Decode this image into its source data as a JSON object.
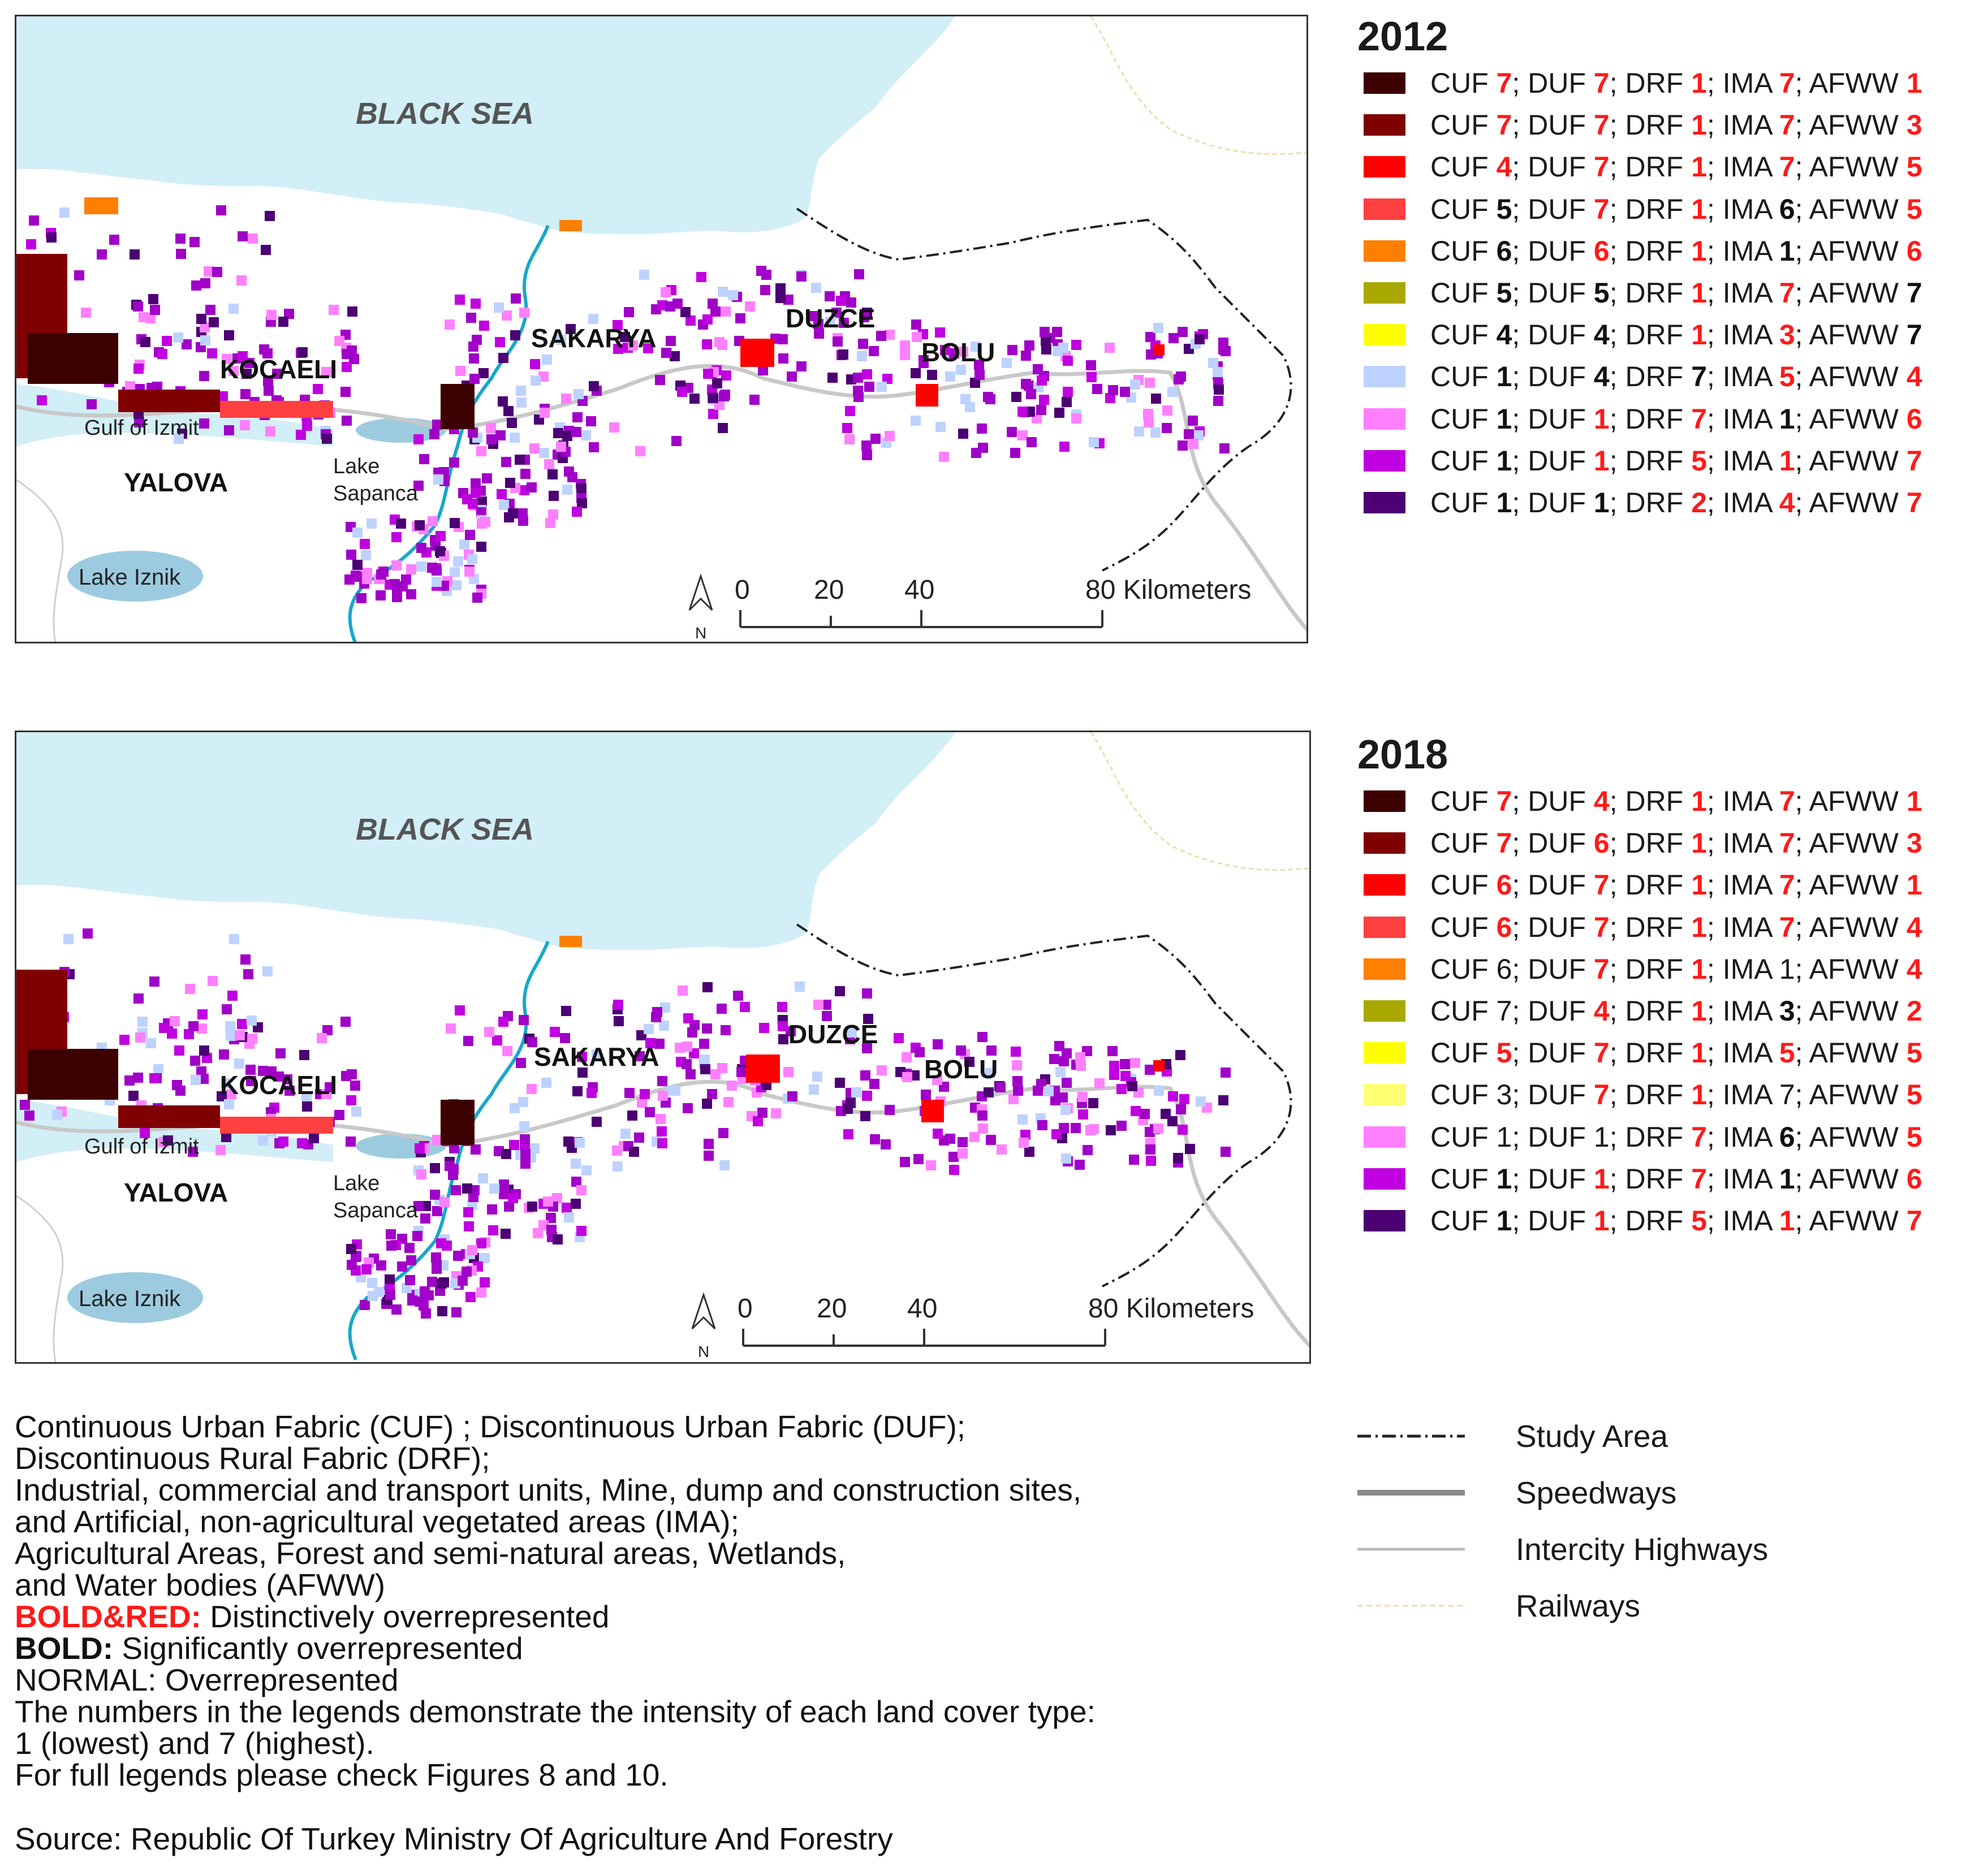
{
  "maps": [
    {
      "year": "2012",
      "labels": {
        "sea": "BLACK SEA",
        "kocaeli": "KOCAELI",
        "sakarya": "SAKARYA",
        "duzce": "DUZCE",
        "bolu": "BOLU",
        "yalova": "YALOVA",
        "gulf": "Gulf of Izmit",
        "lake_sapanca_1": "Lake",
        "lake_sapanca_2": "Sapanca",
        "lake_iznik": "Lake Iznik"
      },
      "scale": {
        "t0": "0",
        "t1": "20",
        "t2": "40",
        "t3": "80 Kilometers",
        "north": "N"
      }
    },
    {
      "year": "2018",
      "labels": {
        "sea": "BLACK SEA",
        "kocaeli": "KOCAELI",
        "sakarya": "SAKARYA",
        "duzce": "DUZCE",
        "bolu": "BOLU",
        "yalova": "YALOVA",
        "gulf": "Gulf of Izmit",
        "lake_sapanca_1": "Lake",
        "lake_sapanca_2": "Sapanca",
        "lake_iznik": "Lake Iznik"
      },
      "scale": {
        "t0": "0",
        "t1": "20",
        "t2": "40",
        "t3": "80 Kilometers",
        "north": "N"
      }
    }
  ],
  "legend_2012": {
    "year": "2012",
    "rows": [
      {
        "color": "#3d0000",
        "CUF": "7",
        "DUF": "7",
        "DRF": "1",
        "IMA": "7",
        "AFWW": "1",
        "style": [
          "r",
          "r",
          "r",
          "r",
          "r"
        ]
      },
      {
        "color": "#800000",
        "CUF": "7",
        "DUF": "7",
        "DRF": "1",
        "IMA": "7",
        "AFWW": "3",
        "style": [
          "r",
          "r",
          "r",
          "r",
          "r"
        ]
      },
      {
        "color": "#ff0000",
        "CUF": "4",
        "DUF": "7",
        "DRF": "1",
        "IMA": "7",
        "AFWW": "5",
        "style": [
          "r",
          "r",
          "r",
          "r",
          "r"
        ]
      },
      {
        "color": "#ff4040",
        "CUF": "5",
        "DUF": "7",
        "DRF": "1",
        "IMA": "6",
        "AFWW": "5",
        "style": [
          "b",
          "r",
          "r",
          "b",
          "r"
        ]
      },
      {
        "color": "#ff7f00",
        "CUF": "6",
        "DUF": "6",
        "DRF": "1",
        "IMA": "1",
        "AFWW": "6",
        "style": [
          "b",
          "r",
          "r",
          "b",
          "r"
        ]
      },
      {
        "color": "#a8a800",
        "CUF": "5",
        "DUF": "5",
        "DRF": "1",
        "IMA": "7",
        "AFWW": "7",
        "style": [
          "b",
          "b",
          "r",
          "r",
          "b"
        ]
      },
      {
        "color": "#ffff00",
        "CUF": "4",
        "DUF": "4",
        "DRF": "1",
        "IMA": "3",
        "AFWW": "7",
        "style": [
          "b",
          "b",
          "r",
          "r",
          "b"
        ]
      },
      {
        "color": "#bed2ff",
        "CUF": "1",
        "DUF": "4",
        "DRF": "7",
        "IMA": "5",
        "AFWW": "4",
        "style": [
          "b",
          "b",
          "b",
          "r",
          "r"
        ]
      },
      {
        "color": "#ff80ff",
        "CUF": "1",
        "DUF": "1",
        "DRF": "7",
        "IMA": "1",
        "AFWW": "6",
        "style": [
          "b",
          "r",
          "r",
          "b",
          "r"
        ]
      },
      {
        "color": "#c000e0",
        "CUF": "1",
        "DUF": "1",
        "DRF": "5",
        "IMA": "1",
        "AFWW": "7",
        "style": [
          "b",
          "r",
          "r",
          "r",
          "r"
        ]
      },
      {
        "color": "#4c0073",
        "CUF": "1",
        "DUF": "1",
        "DRF": "2",
        "IMA": "4",
        "AFWW": "7",
        "style": [
          "b",
          "b",
          "r",
          "r",
          "r"
        ]
      }
    ]
  },
  "legend_2018": {
    "year": "2018",
    "rows": [
      {
        "color": "#3d0000",
        "CUF": "7",
        "DUF": "4",
        "DRF": "1",
        "IMA": "7",
        "AFWW": "1",
        "style": [
          "r",
          "r",
          "r",
          "r",
          "r"
        ]
      },
      {
        "color": "#800000",
        "CUF": "7",
        "DUF": "6",
        "DRF": "1",
        "IMA": "7",
        "AFWW": "3",
        "style": [
          "r",
          "r",
          "r",
          "r",
          "r"
        ]
      },
      {
        "color": "#ff0000",
        "CUF": "6",
        "DUF": "7",
        "DRF": "1",
        "IMA": "7",
        "AFWW": "1",
        "style": [
          "r",
          "r",
          "r",
          "r",
          "r"
        ]
      },
      {
        "color": "#ff4040",
        "CUF": "6",
        "DUF": "7",
        "DRF": "1",
        "IMA": "7",
        "AFWW": "4",
        "style": [
          "r",
          "r",
          "r",
          "r",
          "r"
        ]
      },
      {
        "color": "#ff7f00",
        "CUF": "6",
        "DUF": "7",
        "DRF": "1",
        "IMA": "1",
        "AFWW": "4",
        "style": [
          "n",
          "r",
          "r",
          "n",
          "r"
        ]
      },
      {
        "color": "#a8a800",
        "CUF": "7",
        "DUF": "4",
        "DRF": "1",
        "IMA": "3",
        "AFWW": "2",
        "style": [
          "n",
          "r",
          "r",
          "b",
          "r"
        ]
      },
      {
        "color": "#ffff00",
        "CUF": "5",
        "DUF": "7",
        "DRF": "1",
        "IMA": "5",
        "AFWW": "5",
        "style": [
          "r",
          "r",
          "r",
          "r",
          "r"
        ]
      },
      {
        "color": "#ffff73",
        "CUF": "3",
        "DUF": "7",
        "DRF": "1",
        "IMA": "7",
        "AFWW": "5",
        "style": [
          "n",
          "r",
          "r",
          "n",
          "r"
        ]
      },
      {
        "color": "#ff80ff",
        "CUF": "1",
        "DUF": "1",
        "DRF": "7",
        "IMA": "6",
        "AFWW": "5",
        "style": [
          "n",
          "n",
          "r",
          "b",
          "r"
        ]
      },
      {
        "color": "#c000e0",
        "CUF": "1",
        "DUF": "1",
        "DRF": "7",
        "IMA": "1",
        "AFWW": "6",
        "style": [
          "b",
          "r",
          "r",
          "b",
          "r"
        ]
      },
      {
        "color": "#4c0073",
        "CUF": "1",
        "DUF": "1",
        "DRF": "5",
        "IMA": "1",
        "AFWW": "7",
        "style": [
          "b",
          "r",
          "r",
          "r",
          "r"
        ]
      }
    ]
  },
  "legend_keys": {
    "cuf": "CUF",
    "duf": "DUF",
    "drf": "DRF",
    "ima": "IMA",
    "afww": "AFWW"
  },
  "notes": {
    "line1": "Continuous Urban Fabric (CUF) ; Discontinuous Urban Fabric (DUF);",
    "line2": "Discontinuous Rural Fabric (DRF);",
    "line3": "Industrial, commercial and transport units, Mine, dump and construction sites,",
    "line4": "and Artificial, non-agricultural vegetated areas (IMA);",
    "line5": "Agricultural Areas, Forest and semi-natural areas, Wetlands,",
    "line6": "and Water bodies (AFWW)",
    "bold_red_label": "BOLD&RED:",
    "bold_red_text": " Distinctively overrepresented",
    "bold_label": "BOLD:",
    "bold_text": " Significantly overrepresented",
    "normal_text": "NORMAL: Overrepresented",
    "line10": "The numbers in the legends demonstrate the intensity of each land cover type:",
    "line11": "1 (lowest) and 7 (highest).",
    "line12": "For full legends please check Figures 8 and 10."
  },
  "source": "Source: Republic Of Turkey Ministry Of Agriculture And Forestry",
  "line_legend": {
    "study_area": "Study Area",
    "speedways": "Speedways",
    "highways": "Intercity Highways",
    "railways": "Railways"
  },
  "colors": {
    "sea": "#d2eef7",
    "lake": "#9ccbe0",
    "river": "#17a8c9",
    "road": "#c2c2c2",
    "rail": "#f0dcaa",
    "purple": "#a100c8",
    "red": "#ff1a1a"
  }
}
